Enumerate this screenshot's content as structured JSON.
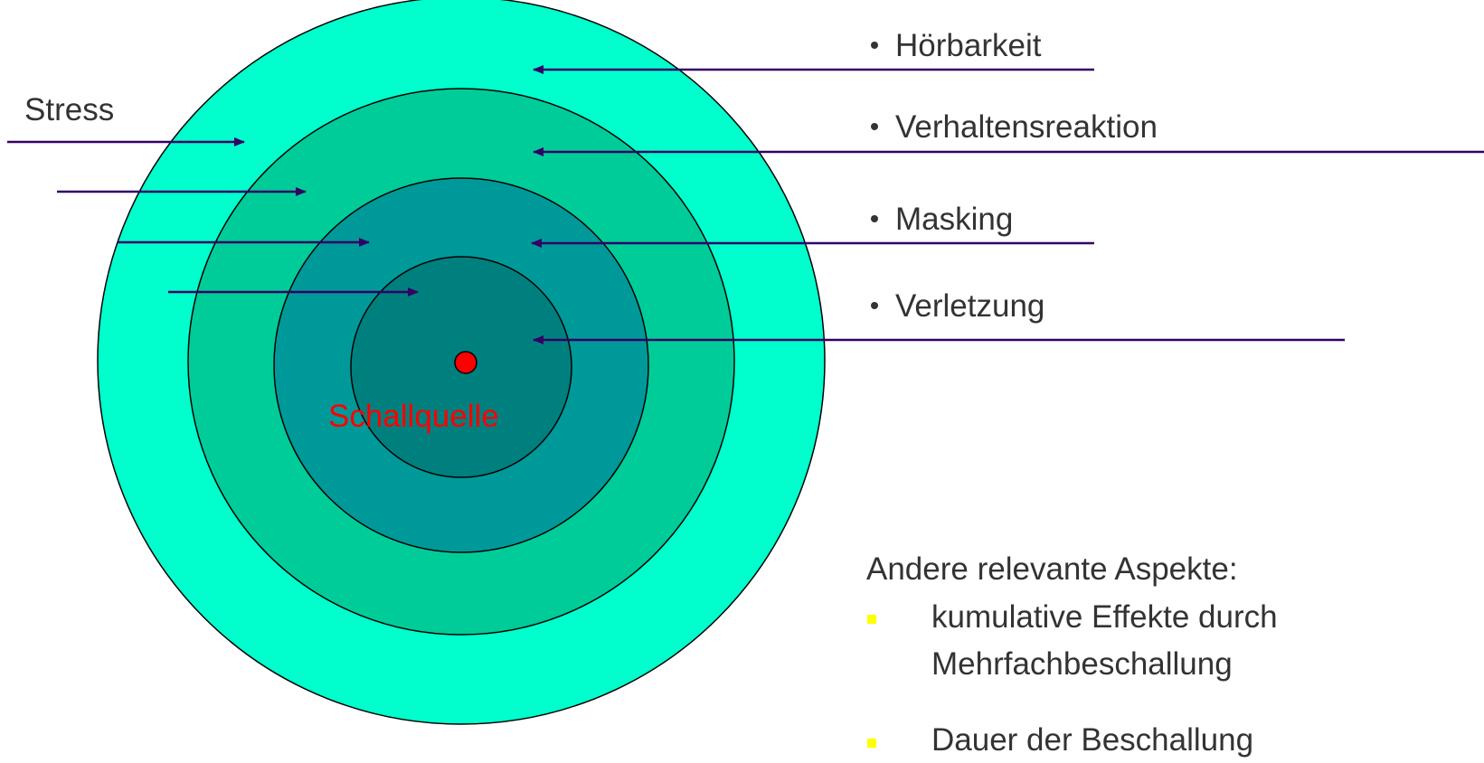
{
  "effects": [
    "Hörbarkeit",
    "Verhaltensreaktion",
    "Masking",
    "Verletzung"
  ],
  "stress": "Stress",
  "source": "Schallquelle",
  "other": {
    "heading": "Andere relevante Aspekte:",
    "items": [
      [
        "kumulative Effekte durch",
        "Mehrfachbeschallung"
      ],
      [
        "Dauer der Beschallung"
      ]
    ]
  }
}
